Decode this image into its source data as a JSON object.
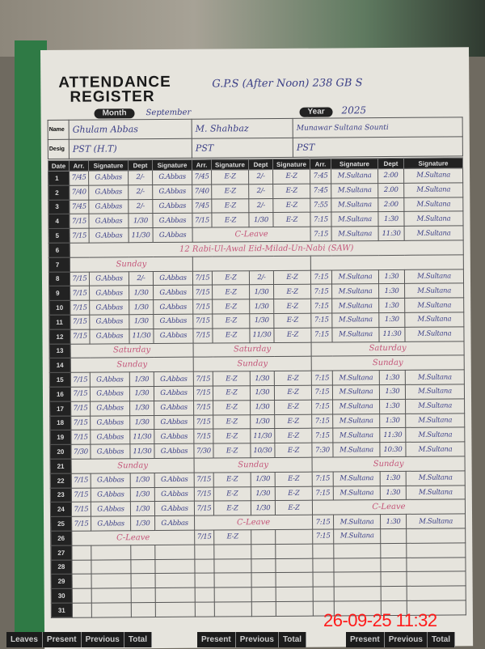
{
  "register": {
    "title_line1": "ATTENDANCE",
    "title_line2": "REGISTER",
    "school": "G.P.S (After Noon) 238 GB S",
    "month_label": "Month",
    "month": "September",
    "year_label": "Year",
    "year": "2025",
    "name_label": "Name",
    "desig_label": "Desig",
    "teachers": [
      {
        "name": "Ghulam Abbas",
        "desig": "PST (H.T)"
      },
      {
        "name": "M. Shahbaz",
        "desig": "PST"
      },
      {
        "name": "Munawar Sultana Sounti",
        "desig": "PST"
      }
    ],
    "columns": [
      "Date",
      "Arr.",
      "Signature",
      "Dept",
      "Signature",
      "Arr.",
      "Signature",
      "Dept",
      "Signature",
      "Arr.",
      "Signature",
      "Dept",
      "Signature"
    ]
  },
  "rows": [
    {
      "date": "1",
      "t": [
        [
          "7/45",
          "G.Abbas",
          "2/-",
          "G.Abbas"
        ],
        [
          "7/45",
          "E-Z",
          "2/-",
          "E-Z"
        ],
        [
          "7:45",
          "M.Sultana",
          "2:00",
          "M.Sultana"
        ]
      ]
    },
    {
      "date": "2",
      "t": [
        [
          "7/40",
          "G.Abbas",
          "2/-",
          "G.Abbas"
        ],
        [
          "7/40",
          "E-Z",
          "2/-",
          "E-Z"
        ],
        [
          "7:45",
          "M.Sultana",
          "2.00",
          "M.Sultana"
        ]
      ]
    },
    {
      "date": "3",
      "t": [
        [
          "7/45",
          "G.Abbas",
          "2/-",
          "G.Abbas"
        ],
        [
          "7/45",
          "E-Z",
          "2/-",
          "E-Z"
        ],
        [
          "7:55",
          "M.Sultana",
          "2:00",
          "M.Sultana"
        ]
      ]
    },
    {
      "date": "4",
      "t": [
        [
          "7/15",
          "G.Abbas",
          "1/30",
          "G.Abbas"
        ],
        [
          "7/15",
          "E-Z",
          "1/30",
          "E-Z"
        ],
        [
          "7:15",
          "M.Sultana",
          "1:30",
          "M.Sultana"
        ]
      ]
    },
    {
      "date": "5",
      "t": [
        [
          "7/15",
          "G.Abbas",
          "11/30",
          "G.Abbas"
        ],
        "C-Leave",
        [
          "7:15",
          "M.Sultana",
          "11:30",
          "M.Sultana"
        ]
      ]
    },
    {
      "date": "6",
      "full": "12 Rabi-Ul-Awal    Eid-Milad-Un-Nabi (SAW)"
    },
    {
      "date": "7",
      "t": [
        "Sunday",
        "",
        ""
      ]
    },
    {
      "date": "8",
      "t": [
        [
          "7/15",
          "G.Abbas",
          "2/-",
          "G.Abbas"
        ],
        [
          "7/15",
          "E-Z",
          "2/-",
          "E-Z"
        ],
        [
          "7:15",
          "M.Sultana",
          "1:30",
          "M.Sultana"
        ]
      ]
    },
    {
      "date": "9",
      "t": [
        [
          "7/15",
          "G.Abbas",
          "1/30",
          "G.Abbas"
        ],
        [
          "7/15",
          "E-Z",
          "1/30",
          "E-Z"
        ],
        [
          "7:15",
          "M.Sultana",
          "1:30",
          "M.Sultana"
        ]
      ]
    },
    {
      "date": "10",
      "t": [
        [
          "7/15",
          "G.Abbas",
          "1/30",
          "G.Abbas"
        ],
        [
          "7/15",
          "E-Z",
          "1/30",
          "E-Z"
        ],
        [
          "7:15",
          "M.Sultana",
          "1:30",
          "M.Sultana"
        ]
      ]
    },
    {
      "date": "11",
      "t": [
        [
          "7/15",
          "G.Abbas",
          "1/30",
          "G.Abbas"
        ],
        [
          "7/15",
          "E-Z",
          "1/30",
          "E-Z"
        ],
        [
          "7:15",
          "M.Sultana",
          "1:30",
          "M.Sultana"
        ]
      ]
    },
    {
      "date": "12",
      "t": [
        [
          "7/15",
          "G.Abbas",
          "11/30",
          "G.Abbas"
        ],
        [
          "7/15",
          "E-Z",
          "11/30",
          "E-Z"
        ],
        [
          "7:15",
          "M.Sultana",
          "11:30",
          "M.Sultana"
        ]
      ]
    },
    {
      "date": "13",
      "t": [
        "Saturday",
        "Saturday",
        "Saturday"
      ]
    },
    {
      "date": "14",
      "t": [
        "Sunday",
        "Sunday",
        "Sunday"
      ]
    },
    {
      "date": "15",
      "t": [
        [
          "7/15",
          "G.Abbas",
          "1/30",
          "G.Abbas"
        ],
        [
          "7/15",
          "E-Z",
          "1/30",
          "E-Z"
        ],
        [
          "7:15",
          "M.Sultana",
          "1:30",
          "M.Sultana"
        ]
      ]
    },
    {
      "date": "16",
      "t": [
        [
          "7/15",
          "G.Abbas",
          "1/30",
          "G.Abbas"
        ],
        [
          "7/15",
          "E-Z",
          "1/30",
          "E-Z"
        ],
        [
          "7:15",
          "M.Sultana",
          "1:30",
          "M.Sultana"
        ]
      ]
    },
    {
      "date": "17",
      "t": [
        [
          "7/15",
          "G.Abbas",
          "1/30",
          "G.Abbas"
        ],
        [
          "7/15",
          "E-Z",
          "1/30",
          "E-Z"
        ],
        [
          "7:15",
          "M.Sultana",
          "1:30",
          "M.Sultana"
        ]
      ]
    },
    {
      "date": "18",
      "t": [
        [
          "7/15",
          "G.Abbas",
          "1/30",
          "G.Abbas"
        ],
        [
          "7/15",
          "E-Z",
          "1/30",
          "E-Z"
        ],
        [
          "7:15",
          "M.Sultana",
          "1:30",
          "M.Sultana"
        ]
      ]
    },
    {
      "date": "19",
      "t": [
        [
          "7/15",
          "G.Abbas",
          "11/30",
          "G.Abbas"
        ],
        [
          "7/15",
          "E-Z",
          "11/30",
          "E-Z"
        ],
        [
          "7:15",
          "M.Sultana",
          "11:30",
          "M.Sultana"
        ]
      ]
    },
    {
      "date": "20",
      "t": [
        [
          "7/30",
          "G.Abbas",
          "11/30",
          "G.Abbas"
        ],
        [
          "7/30",
          "E-Z",
          "10/30",
          "E-Z"
        ],
        [
          "7:30",
          "M.Sultana",
          "10:30",
          "M.Sultana"
        ]
      ]
    },
    {
      "date": "21",
      "t": [
        "Sunday",
        "Sunday",
        "Sunday"
      ]
    },
    {
      "date": "22",
      "t": [
        [
          "7/15",
          "G.Abbas",
          "1/30",
          "G.Abbas"
        ],
        [
          "7/15",
          "E-Z",
          "1/30",
          "E-Z"
        ],
        [
          "7:15",
          "M.Sultana",
          "1:30",
          "M.Sultana"
        ]
      ]
    },
    {
      "date": "23",
      "t": [
        [
          "7/15",
          "G.Abbas",
          "1/30",
          "G.Abbas"
        ],
        [
          "7/15",
          "E-Z",
          "1/30",
          "E-Z"
        ],
        [
          "7:15",
          "M.Sultana",
          "1:30",
          "M.Sultana"
        ]
      ]
    },
    {
      "date": "24",
      "t": [
        [
          "7/15",
          "G.Abbas",
          "1/30",
          "G.Abbas"
        ],
        [
          "7/15",
          "E-Z",
          "1/30",
          "E-Z"
        ],
        "C-Leave"
      ]
    },
    {
      "date": "25",
      "t": [
        [
          "7/15",
          "G.Abbas",
          "1/30",
          "G.Abbas"
        ],
        "C-Leave",
        [
          "7:15",
          "M.Sultana",
          "1:30",
          "M.Sultana"
        ]
      ]
    },
    {
      "date": "26",
      "t": [
        "C-Leave",
        [
          "7/15",
          "E-Z",
          "",
          ""
        ],
        [
          "7:15",
          "M.Sultana",
          "",
          ""
        ]
      ]
    },
    {
      "date": "27",
      "t": [
        [
          "",
          "",
          "",
          ""
        ],
        [
          "",
          "",
          "",
          ""
        ],
        [
          "",
          "",
          "",
          ""
        ]
      ]
    },
    {
      "date": "28",
      "t": [
        [
          "",
          "",
          "",
          ""
        ],
        [
          "",
          "",
          "",
          ""
        ],
        [
          "",
          "",
          "",
          ""
        ]
      ]
    },
    {
      "date": "29",
      "t": [
        [
          "",
          "",
          "",
          ""
        ],
        [
          "",
          "",
          "",
          ""
        ],
        [
          "",
          "",
          "",
          ""
        ]
      ]
    },
    {
      "date": "30",
      "t": [
        [
          "",
          "",
          "",
          ""
        ],
        [
          "",
          "",
          "",
          ""
        ],
        [
          "",
          "",
          "",
          ""
        ]
      ]
    },
    {
      "date": "31",
      "t": [
        [
          "",
          "",
          "",
          ""
        ],
        [
          "",
          "",
          "",
          ""
        ],
        [
          "",
          "",
          "",
          ""
        ]
      ]
    }
  ],
  "footer": {
    "box1": [
      "Leaves",
      "Present",
      "Previous",
      "Total"
    ],
    "box2": [
      "Present",
      "Previous",
      "Total"
    ],
    "box3": [
      "Present",
      "Previous",
      "Total"
    ]
  },
  "camera_timestamp": "26-09-25 11:32"
}
